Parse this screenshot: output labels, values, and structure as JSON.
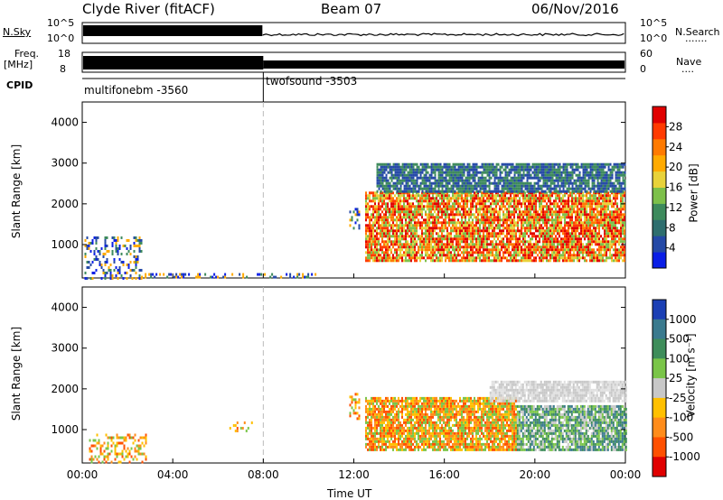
{
  "header": {
    "station": "Clyde River (fitACF)",
    "beam": "Beam 07",
    "date": "06/Nov/2016"
  },
  "strip_panels": {
    "sky_label": "N.Sky",
    "sky_ticks": [
      "10^5",
      "10^0"
    ],
    "search_label": "N.Search",
    "search_ticks": [
      "10^5",
      "10^0"
    ],
    "search_dots": "·······",
    "freq_label": "Freq.",
    "freq_unit": "[MHz]",
    "freq_ticks": [
      "18",
      "8"
    ],
    "nave_label": "Nave",
    "nave_ticks": [
      "60",
      "0"
    ],
    "nave_dots": "····",
    "cpid_label": "CPID",
    "cpid_modes": [
      {
        "name": "multifonebm",
        "id": "-3560",
        "start_hour": 0
      },
      {
        "name": "twofsound",
        "id": "-3503",
        "start_hour": 8
      }
    ]
  },
  "chart_data": [
    {
      "type": "heatmap",
      "title": "",
      "xlabel": "",
      "ylabel": "Slant Range [km]",
      "xlim": [
        0,
        24
      ],
      "ylim": [
        180,
        4500
      ],
      "yticks": [
        "1000",
        "2000",
        "3000",
        "4000"
      ],
      "colorbar": {
        "label": "Power [dB]",
        "range": [
          0,
          32
        ],
        "tick_labels": [
          "4",
          "8",
          "12",
          "16",
          "20",
          "24",
          "28"
        ],
        "colors": [
          "#0a1ee6",
          "#2449a6",
          "#2e6e6e",
          "#3d8a5c",
          "#7dc04a",
          "#e8d23a",
          "#ffaa00",
          "#ff7a00",
          "#ff3a00",
          "#e00000"
        ]
      },
      "vertical_marker_hour": 8,
      "echo_regions": [
        {
          "hours": [
            0.1,
            2.6
          ],
          "range_km": [
            200,
            1200
          ],
          "value": "4-12 dB, scattered"
        },
        {
          "hours": [
            2.6,
            10.5
          ],
          "range_km": [
            180,
            300
          ],
          "value": "4 dB, sparse"
        },
        {
          "hours": [
            11.8,
            12.2
          ],
          "range_km": [
            1400,
            1900
          ],
          "value": "12-28 dB"
        },
        {
          "hours": [
            12.5,
            24.0
          ],
          "range_km": [
            600,
            2300
          ],
          "value": "16-28 dB, strongest near 1000 km"
        },
        {
          "hours": [
            13.0,
            24.0
          ],
          "range_km": [
            2300,
            3000
          ],
          "value": "4-8 dB, sparse"
        }
      ]
    },
    {
      "type": "heatmap",
      "title": "",
      "xlabel": "Time UT",
      "ylabel": "Slant Range [km]",
      "xlim": [
        0,
        24
      ],
      "ylim": [
        180,
        4500
      ],
      "xticks": [
        "00:00",
        "04:00",
        "08:00",
        "12:00",
        "16:00",
        "20:00",
        "00:00"
      ],
      "yticks": [
        "1000",
        "2000",
        "3000",
        "4000"
      ],
      "colorbar": {
        "label": "Velocity [m s⁻¹]",
        "range": [
          -1200,
          1200
        ],
        "tick_labels": [
          "1000",
          "500",
          "100",
          "25",
          "-25",
          "-100",
          "-500",
          "-1000"
        ],
        "colors": [
          "#1b3fb4",
          "#3a7a8e",
          "#3e8d5a",
          "#7ac548",
          "#c8c8c8",
          "#ffc000",
          "#ff8c1a",
          "#ff5000",
          "#e00000"
        ]
      },
      "vertical_marker_hour": 8,
      "echo_regions": [
        {
          "hours": [
            0.3,
            2.8
          ],
          "range_km": [
            200,
            900
          ],
          "value": "-25 to 100 m/s"
        },
        {
          "hours": [
            6.5,
            7.5
          ],
          "range_km": [
            1000,
            1200
          ],
          "value": "-100 to -500 m/s"
        },
        {
          "hours": [
            11.8,
            12.2
          ],
          "range_km": [
            1300,
            1900
          ],
          "value": "-100 to -500 m/s"
        },
        {
          "hours": [
            12.5,
            19.2
          ],
          "range_km": [
            500,
            1800
          ],
          "value": "-100 to -500 m/s"
        },
        {
          "hours": [
            19.2,
            24.0
          ],
          "range_km": [
            500,
            1600
          ],
          "value": "25 to 500 m/s"
        },
        {
          "hours": [
            18.0,
            24.0
          ],
          "range_km": [
            1700,
            2200
          ],
          "value": "-25 to 25 m/s"
        }
      ]
    }
  ]
}
